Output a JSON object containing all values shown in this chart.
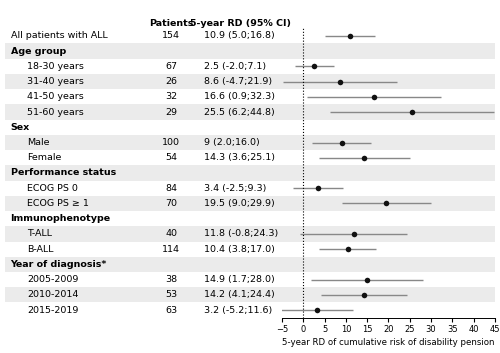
{
  "rows": [
    {
      "label": "All patients with ALL",
      "n": 154,
      "ci_str": "10.9 (5.0;16.8)",
      "est": 10.9,
      "lo": 5.0,
      "hi": 16.8,
      "indent": 0,
      "header": false,
      "bg": "white"
    },
    {
      "label": "Age group",
      "n": null,
      "ci_str": "",
      "est": null,
      "lo": null,
      "hi": null,
      "indent": 0,
      "header": true,
      "bg": "#ebebeb"
    },
    {
      "label": "18-30 years",
      "n": 67,
      "ci_str": "2.5 (-2.0;7.1)",
      "est": 2.5,
      "lo": -2.0,
      "hi": 7.1,
      "indent": 1,
      "header": false,
      "bg": "white"
    },
    {
      "label": "31-40 years",
      "n": 26,
      "ci_str": "8.6 (-4.7;21.9)",
      "est": 8.6,
      "lo": -4.7,
      "hi": 21.9,
      "indent": 1,
      "header": false,
      "bg": "#ebebeb"
    },
    {
      "label": "41-50 years",
      "n": 32,
      "ci_str": "16.6 (0.9;32.3)",
      "est": 16.6,
      "lo": 0.9,
      "hi": 32.3,
      "indent": 1,
      "header": false,
      "bg": "white"
    },
    {
      "label": "51-60 years",
      "n": 29,
      "ci_str": "25.5 (6.2;44.8)",
      "est": 25.5,
      "lo": 6.2,
      "hi": 44.8,
      "indent": 1,
      "header": false,
      "bg": "#ebebeb"
    },
    {
      "label": "Sex",
      "n": null,
      "ci_str": "",
      "est": null,
      "lo": null,
      "hi": null,
      "indent": 0,
      "header": true,
      "bg": "white"
    },
    {
      "label": "Male",
      "n": 100,
      "ci_str": "9 (2.0;16.0)",
      "est": 9.0,
      "lo": 2.0,
      "hi": 16.0,
      "indent": 1,
      "header": false,
      "bg": "#ebebeb"
    },
    {
      "label": "Female",
      "n": 54,
      "ci_str": "14.3 (3.6;25.1)",
      "est": 14.3,
      "lo": 3.6,
      "hi": 25.1,
      "indent": 1,
      "header": false,
      "bg": "white"
    },
    {
      "label": "Performance status",
      "n": null,
      "ci_str": "",
      "est": null,
      "lo": null,
      "hi": null,
      "indent": 0,
      "header": true,
      "bg": "#ebebeb"
    },
    {
      "label": "ECOG PS 0",
      "n": 84,
      "ci_str": "3.4 (-2.5;9.3)",
      "est": 3.4,
      "lo": -2.5,
      "hi": 9.3,
      "indent": 1,
      "header": false,
      "bg": "white"
    },
    {
      "label": "ECOG PS ≥ 1",
      "n": 70,
      "ci_str": "19.5 (9.0;29.9)",
      "est": 19.5,
      "lo": 9.0,
      "hi": 29.9,
      "indent": 1,
      "header": false,
      "bg": "#ebebeb"
    },
    {
      "label": "Immunophenotype",
      "n": null,
      "ci_str": "",
      "est": null,
      "lo": null,
      "hi": null,
      "indent": 0,
      "header": true,
      "bg": "white"
    },
    {
      "label": "T-ALL",
      "n": 40,
      "ci_str": "11.8 (-0.8;24.3)",
      "est": 11.8,
      "lo": -0.8,
      "hi": 24.3,
      "indent": 1,
      "header": false,
      "bg": "#ebebeb"
    },
    {
      "label": "B-ALL",
      "n": 114,
      "ci_str": "10.4 (3.8;17.0)",
      "est": 10.4,
      "lo": 3.8,
      "hi": 17.0,
      "indent": 1,
      "header": false,
      "bg": "white"
    },
    {
      "label": "Year of diagnosis*",
      "n": null,
      "ci_str": "",
      "est": null,
      "lo": null,
      "hi": null,
      "indent": 0,
      "header": true,
      "bg": "#ebebeb"
    },
    {
      "label": "2005-2009",
      "n": 38,
      "ci_str": "14.9 (1.7;28.0)",
      "est": 14.9,
      "lo": 1.7,
      "hi": 28.0,
      "indent": 1,
      "header": false,
      "bg": "white"
    },
    {
      "label": "2010-2014",
      "n": 53,
      "ci_str": "14.2 (4.1;24.4)",
      "est": 14.2,
      "lo": 4.1,
      "hi": 24.4,
      "indent": 1,
      "header": false,
      "bg": "#ebebeb"
    },
    {
      "label": "2015-2019",
      "n": 63,
      "ci_str": "3.2 (-5.2;11.6)",
      "est": 3.2,
      "lo": -5.2,
      "hi": 11.6,
      "indent": 1,
      "header": false,
      "bg": "white"
    }
  ],
  "col_header_patients": "Patients",
  "col_header_ci": "5-year RD (95% CI)",
  "xlabel": "5-year RD of cumulative risk of disability pension",
  "xmin": -5,
  "xmax": 45,
  "xticks": [
    -5,
    0,
    5,
    10,
    15,
    20,
    25,
    30,
    35,
    40,
    45
  ],
  "dot_color": "#111111",
  "line_color": "#888888",
  "band_color": "#ebebeb",
  "fontsize": 6.8,
  "marker_size": 4.0,
  "lw": 1.0
}
